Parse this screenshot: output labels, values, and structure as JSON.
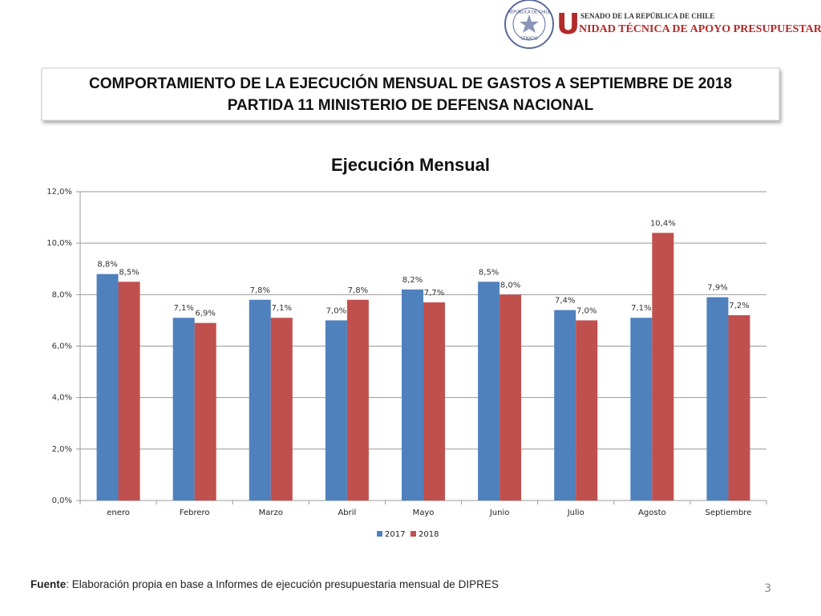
{
  "header": {
    "seal_top": "REPÚBLICA DE CHILE",
    "seal_bottom": "SENADO",
    "initial": "U",
    "org_line_1": "SENADO DE LA REPÚBLICA DE CHILE",
    "org_line_2": "NIDAD TÉCNICA DE APOYO PRESUPUESTARIO"
  },
  "slide_title": [
    "COMPORTAMIENTO DE LA EJECUCIÓN MENSUAL DE GASTOS A SEPTIEMBRE DE 2018",
    "PARTIDA 11 MINISTERIO DE DEFENSA NACIONAL"
  ],
  "chart_data": {
    "type": "bar",
    "title": "Ejecución Mensual",
    "categories": [
      "enero",
      "Febrero",
      "Marzo",
      "Abril",
      "Mayo",
      "Junio",
      "Julio",
      "Agosto",
      "Septiembre"
    ],
    "series": [
      {
        "name": "2017",
        "color": "#4f81bd",
        "values": [
          8.8,
          7.1,
          7.8,
          7.0,
          8.2,
          8.5,
          7.4,
          7.1,
          7.9
        ],
        "value_labels": [
          "8,8%",
          "7,1%",
          "7,8%",
          "7,0%",
          "8,2%",
          "8,5%",
          "7,4%",
          "7,1%",
          "7,9%"
        ]
      },
      {
        "name": "2018",
        "color": "#c0504d",
        "values": [
          8.5,
          6.9,
          7.1,
          7.8,
          7.7,
          8.0,
          7.0,
          10.4,
          7.2
        ],
        "value_labels": [
          "8,5%",
          "6,9%",
          "7,1%",
          "7,8%",
          "7,7%",
          "8,0%",
          "7,0%",
          "10,4%",
          "7,2%"
        ]
      }
    ],
    "ylim": [
      0,
      12
    ],
    "yticks": [
      {
        "value": 0,
        "label": "0,0%"
      },
      {
        "value": 2,
        "label": "2,0%"
      },
      {
        "value": 4,
        "label": "4,0%"
      },
      {
        "value": 6,
        "label": "6,0%"
      },
      {
        "value": 8,
        "label": "8,0%"
      },
      {
        "value": 10,
        "label": "10,0%"
      },
      {
        "value": 12,
        "label": "12,0%"
      }
    ],
    "grid": true,
    "legend": "bottom"
  },
  "footer": {
    "source_label": "Fuente",
    "source_text": ": Elaboración propia en base  a Informes de ejecución presupuestaria mensual de DIPRES",
    "page_number": "3"
  }
}
